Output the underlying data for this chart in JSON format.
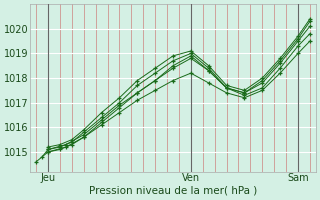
{
  "bg_color": "#d4f0e4",
  "grid_color_major": "#ffffff",
  "line_color": "#1a6b1a",
  "marker_color": "#1a6b1a",
  "title": "Pression niveau de la mer( hPa )",
  "ylabel_ticks": [
    1015,
    1016,
    1017,
    1018,
    1019,
    1020
  ],
  "ylim": [
    1014.2,
    1021.0
  ],
  "xlim": [
    -6,
    90
  ],
  "xlabel_ticks": [
    0,
    48,
    84
  ],
  "xlabel_labels": [
    "Jeu",
    "Ven",
    "Sam"
  ],
  "day_lines": [
    0,
    48,
    84
  ],
  "series": [
    {
      "x": [
        -4,
        0,
        6,
        12,
        18,
        24,
        30,
        36,
        42,
        48,
        54,
        60,
        66,
        72,
        78,
        84,
        88
      ],
      "y": [
        1014.6,
        1015.0,
        1015.2,
        1015.6,
        1016.1,
        1016.6,
        1017.1,
        1017.5,
        1017.9,
        1018.2,
        1017.8,
        1017.4,
        1017.2,
        1017.5,
        1018.2,
        1019.0,
        1019.5
      ]
    },
    {
      "x": [
        -2,
        0,
        6,
        12,
        18,
        24,
        30,
        36,
        42,
        48,
        54,
        60,
        66,
        72,
        78,
        84,
        88
      ],
      "y": [
        1014.8,
        1015.1,
        1015.3,
        1015.7,
        1016.3,
        1016.9,
        1017.4,
        1017.9,
        1018.4,
        1018.8,
        1018.3,
        1017.6,
        1017.3,
        1017.6,
        1018.4,
        1019.3,
        1019.8
      ]
    },
    {
      "x": [
        0,
        4,
        8,
        12,
        18,
        24,
        30,
        36,
        42,
        48,
        54,
        60,
        66,
        72,
        78,
        84,
        88
      ],
      "y": [
        1015.0,
        1015.1,
        1015.3,
        1015.6,
        1016.2,
        1016.8,
        1017.4,
        1017.9,
        1018.5,
        1018.9,
        1018.3,
        1017.6,
        1017.4,
        1017.8,
        1018.6,
        1019.5,
        1020.1
      ]
    },
    {
      "x": [
        0,
        4,
        8,
        12,
        18,
        24,
        30,
        36,
        42,
        48,
        54,
        60,
        66,
        72,
        78,
        84,
        88
      ],
      "y": [
        1015.1,
        1015.2,
        1015.4,
        1015.8,
        1016.4,
        1017.0,
        1017.7,
        1018.2,
        1018.7,
        1019.0,
        1018.4,
        1017.6,
        1017.4,
        1017.9,
        1018.7,
        1019.6,
        1020.3
      ]
    },
    {
      "x": [
        0,
        4,
        8,
        12,
        18,
        24,
        30,
        36,
        42,
        48,
        54,
        60,
        66,
        72,
        78,
        84,
        88
      ],
      "y": [
        1015.2,
        1015.3,
        1015.5,
        1015.9,
        1016.6,
        1017.2,
        1017.9,
        1018.4,
        1018.9,
        1019.1,
        1018.5,
        1017.7,
        1017.5,
        1018.0,
        1018.8,
        1019.7,
        1020.4
      ]
    }
  ]
}
